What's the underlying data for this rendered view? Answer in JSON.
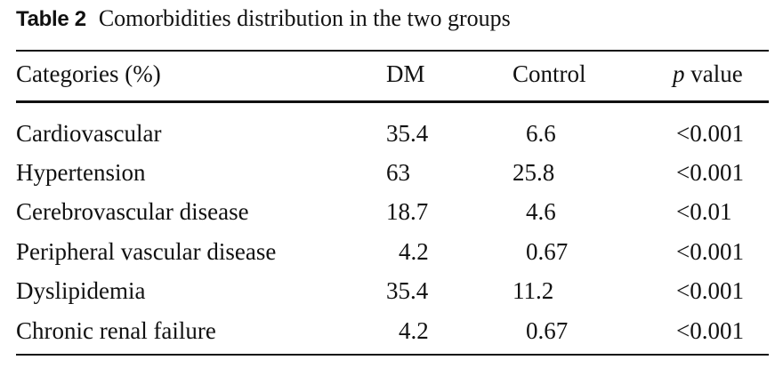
{
  "table": {
    "label": "Table 2",
    "title": "Comorbidities distribution in the two groups",
    "headers": {
      "category": "Categories (%)",
      "dm": "DM",
      "control": "Control",
      "p_italic": "p",
      "p_rest": " value"
    },
    "rows": [
      {
        "category": "Cardiovascular",
        "dm": "35.4",
        "control": "6.6",
        "p": "<0.001"
      },
      {
        "category": "Hypertension",
        "dm": "63",
        "control": "25.8",
        "p": "<0.001"
      },
      {
        "category": "Cerebrovascular disease",
        "dm": "18.7",
        "control": "4.6",
        "p": "<0.01"
      },
      {
        "category": "Peripheral vascular disease",
        "dm": "4.2",
        "control": "0.67",
        "p": "<0.001"
      },
      {
        "category": "Dyslipidemia",
        "dm": "35.4",
        "control": "11.2",
        "p": "<0.001"
      },
      {
        "category": "Chronic renal failure",
        "dm": "4.2",
        "control": "0.67",
        "p": "<0.001"
      }
    ]
  }
}
